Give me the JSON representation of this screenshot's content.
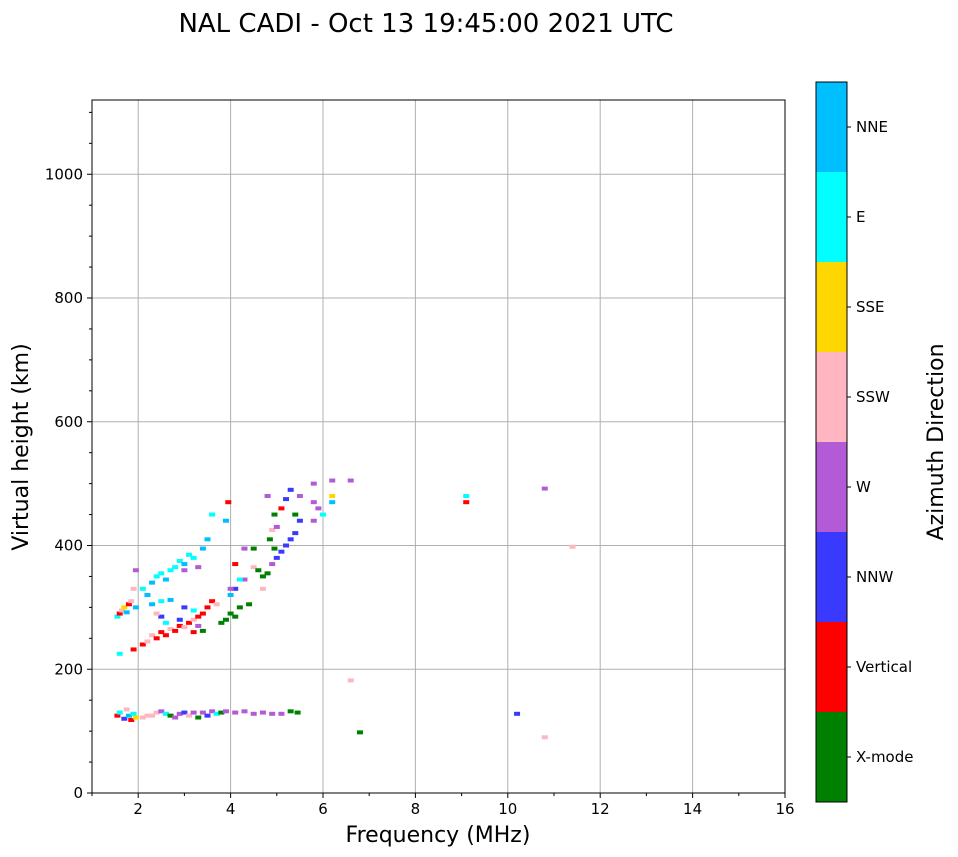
{
  "chart_data": {
    "type": "scatter",
    "title": "NAL CADI - Oct 13 19:45:00 2021 UTC",
    "xlabel": "Frequency (MHz)",
    "ylabel": "Virtual height (km)",
    "xlim": [
      1,
      16
    ],
    "ylim": [
      0,
      1120
    ],
    "xticks": [
      2,
      4,
      6,
      8,
      10,
      12,
      14,
      16
    ],
    "yticks": [
      0,
      200,
      400,
      600,
      800,
      1000
    ],
    "grid": true,
    "colorbar": {
      "label": "Azimuth Direction",
      "categories": [
        "X-mode",
        "Vertical",
        "NNW",
        "W",
        "SSW",
        "SSE",
        "E",
        "NNE"
      ],
      "colors": [
        "#008000",
        "#ff0000",
        "#3a3aff",
        "#b35ad6",
        "#ffb6c1",
        "#ffd700",
        "#00ffff",
        "#00bfff"
      ]
    },
    "points_legend": "[frequency MHz, virtual height km, category index]",
    "points": [
      [
        1.55,
        285,
        6
      ],
      [
        1.6,
        290,
        1
      ],
      [
        1.65,
        295,
        4
      ],
      [
        1.7,
        300,
        5
      ],
      [
        1.75,
        292,
        7
      ],
      [
        1.8,
        305,
        1
      ],
      [
        1.85,
        310,
        4
      ],
      [
        1.9,
        330,
        4
      ],
      [
        1.95,
        360,
        3
      ],
      [
        1.6,
        225,
        6
      ],
      [
        1.9,
        232,
        1
      ],
      [
        1.95,
        300,
        7
      ],
      [
        2.1,
        240,
        1
      ],
      [
        2.2,
        245,
        4
      ],
      [
        2.3,
        255,
        4
      ],
      [
        2.4,
        250,
        1
      ],
      [
        2.5,
        260,
        1
      ],
      [
        2.6,
        255,
        1
      ],
      [
        2.7,
        265,
        4
      ],
      [
        2.8,
        262,
        1
      ],
      [
        2.9,
        270,
        1
      ],
      [
        3.0,
        268,
        4
      ],
      [
        3.1,
        275,
        1
      ],
      [
        3.2,
        280,
        4
      ],
      [
        3.3,
        285,
        1
      ],
      [
        3.4,
        290,
        1
      ],
      [
        3.5,
        300,
        1
      ],
      [
        3.6,
        310,
        1
      ],
      [
        3.7,
        305,
        4
      ],
      [
        3.2,
        260,
        1
      ],
      [
        3.4,
        262,
        0
      ],
      [
        3.3,
        270,
        3
      ],
      [
        2.9,
        280,
        2
      ],
      [
        2.6,
        275,
        6
      ],
      [
        2.5,
        285,
        2
      ],
      [
        2.4,
        290,
        4
      ],
      [
        3.0,
        300,
        2
      ],
      [
        3.2,
        295,
        6
      ],
      [
        2.1,
        330,
        6
      ],
      [
        2.2,
        320,
        7
      ],
      [
        2.3,
        340,
        7
      ],
      [
        2.4,
        350,
        6
      ],
      [
        2.5,
        355,
        6
      ],
      [
        2.6,
        345,
        7
      ],
      [
        2.7,
        360,
        6
      ],
      [
        2.8,
        365,
        6
      ],
      [
        2.9,
        375,
        6
      ],
      [
        3.0,
        370,
        7
      ],
      [
        3.1,
        385,
        6
      ],
      [
        3.2,
        380,
        6
      ],
      [
        2.3,
        305,
        7
      ],
      [
        2.5,
        310,
        6
      ],
      [
        2.7,
        312,
        7
      ],
      [
        3.0,
        360,
        3
      ],
      [
        3.3,
        365,
        3
      ],
      [
        3.5,
        410,
        7
      ],
      [
        3.6,
        450,
        6
      ],
      [
        3.4,
        395,
        7
      ],
      [
        3.9,
        440,
        7
      ],
      [
        3.95,
        470,
        1
      ],
      [
        4.3,
        395,
        3
      ],
      [
        3.8,
        275,
        0
      ],
      [
        3.9,
        280,
        0
      ],
      [
        4.0,
        290,
        0
      ],
      [
        4.1,
        285,
        0
      ],
      [
        4.2,
        300,
        0
      ],
      [
        4.4,
        305,
        0
      ],
      [
        4.0,
        320,
        7
      ],
      [
        4.1,
        330,
        2
      ],
      [
        4.3,
        345,
        3
      ],
      [
        4.5,
        365,
        4
      ],
      [
        4.6,
        360,
        0
      ],
      [
        4.7,
        350,
        0
      ],
      [
        4.8,
        355,
        0
      ],
      [
        4.9,
        370,
        3
      ],
      [
        4.95,
        395,
        0
      ],
      [
        4.85,
        410,
        0
      ],
      [
        4.9,
        425,
        4
      ],
      [
        5.0,
        430,
        3
      ],
      [
        4.95,
        450,
        0
      ],
      [
        5.1,
        460,
        1
      ],
      [
        4.8,
        480,
        3
      ],
      [
        4.0,
        330,
        3
      ],
      [
        4.2,
        345,
        6
      ],
      [
        4.1,
        370,
        1
      ],
      [
        4.5,
        395,
        0
      ],
      [
        4.7,
        330,
        4
      ],
      [
        5.0,
        380,
        2
      ],
      [
        5.1,
        390,
        2
      ],
      [
        5.2,
        400,
        2
      ],
      [
        5.3,
        410,
        2
      ],
      [
        5.4,
        420,
        2
      ],
      [
        5.5,
        440,
        2
      ],
      [
        5.2,
        475,
        2
      ],
      [
        5.3,
        490,
        2
      ],
      [
        5.5,
        480,
        3
      ],
      [
        5.8,
        470,
        3
      ],
      [
        5.9,
        460,
        3
      ],
      [
        6.0,
        450,
        6
      ],
      [
        5.8,
        500,
        3
      ],
      [
        6.2,
        505,
        3
      ],
      [
        6.2,
        470,
        7
      ],
      [
        6.2,
        480,
        5
      ],
      [
        6.6,
        505,
        3
      ],
      [
        5.4,
        450,
        0
      ],
      [
        5.8,
        440,
        3
      ],
      [
        1.55,
        125,
        1
      ],
      [
        1.6,
        130,
        6
      ],
      [
        1.7,
        120,
        2
      ],
      [
        1.75,
        135,
        4
      ],
      [
        1.8,
        125,
        7
      ],
      [
        1.85,
        118,
        1
      ],
      [
        1.9,
        128,
        6
      ],
      [
        1.95,
        122,
        5
      ],
      [
        2.1,
        122,
        4
      ],
      [
        2.2,
        125,
        4
      ],
      [
        2.3,
        125,
        4
      ],
      [
        2.4,
        130,
        4
      ],
      [
        2.5,
        132,
        3
      ],
      [
        2.6,
        128,
        6
      ],
      [
        2.7,
        125,
        0
      ],
      [
        2.8,
        122,
        3
      ],
      [
        2.9,
        128,
        3
      ],
      [
        3.0,
        130,
        2
      ],
      [
        3.1,
        125,
        4
      ],
      [
        3.2,
        130,
        3
      ],
      [
        3.3,
        122,
        0
      ],
      [
        3.4,
        130,
        3
      ],
      [
        3.5,
        125,
        2
      ],
      [
        3.6,
        132,
        3
      ],
      [
        3.7,
        128,
        6
      ],
      [
        3.8,
        130,
        0
      ],
      [
        3.9,
        132,
        3
      ],
      [
        4.1,
        130,
        3
      ],
      [
        4.3,
        132,
        3
      ],
      [
        4.5,
        128,
        3
      ],
      [
        4.7,
        130,
        3
      ],
      [
        4.9,
        128,
        3
      ],
      [
        5.1,
        128,
        3
      ],
      [
        5.3,
        132,
        0
      ],
      [
        5.45,
        130,
        0
      ],
      [
        9.1,
        480,
        6
      ],
      [
        9.1,
        470,
        1
      ],
      [
        10.8,
        492,
        3
      ],
      [
        11.4,
        398,
        4
      ],
      [
        6.6,
        182,
        4
      ],
      [
        6.8,
        98,
        0
      ],
      [
        10.2,
        128,
        2
      ],
      [
        10.8,
        90,
        4
      ]
    ]
  }
}
